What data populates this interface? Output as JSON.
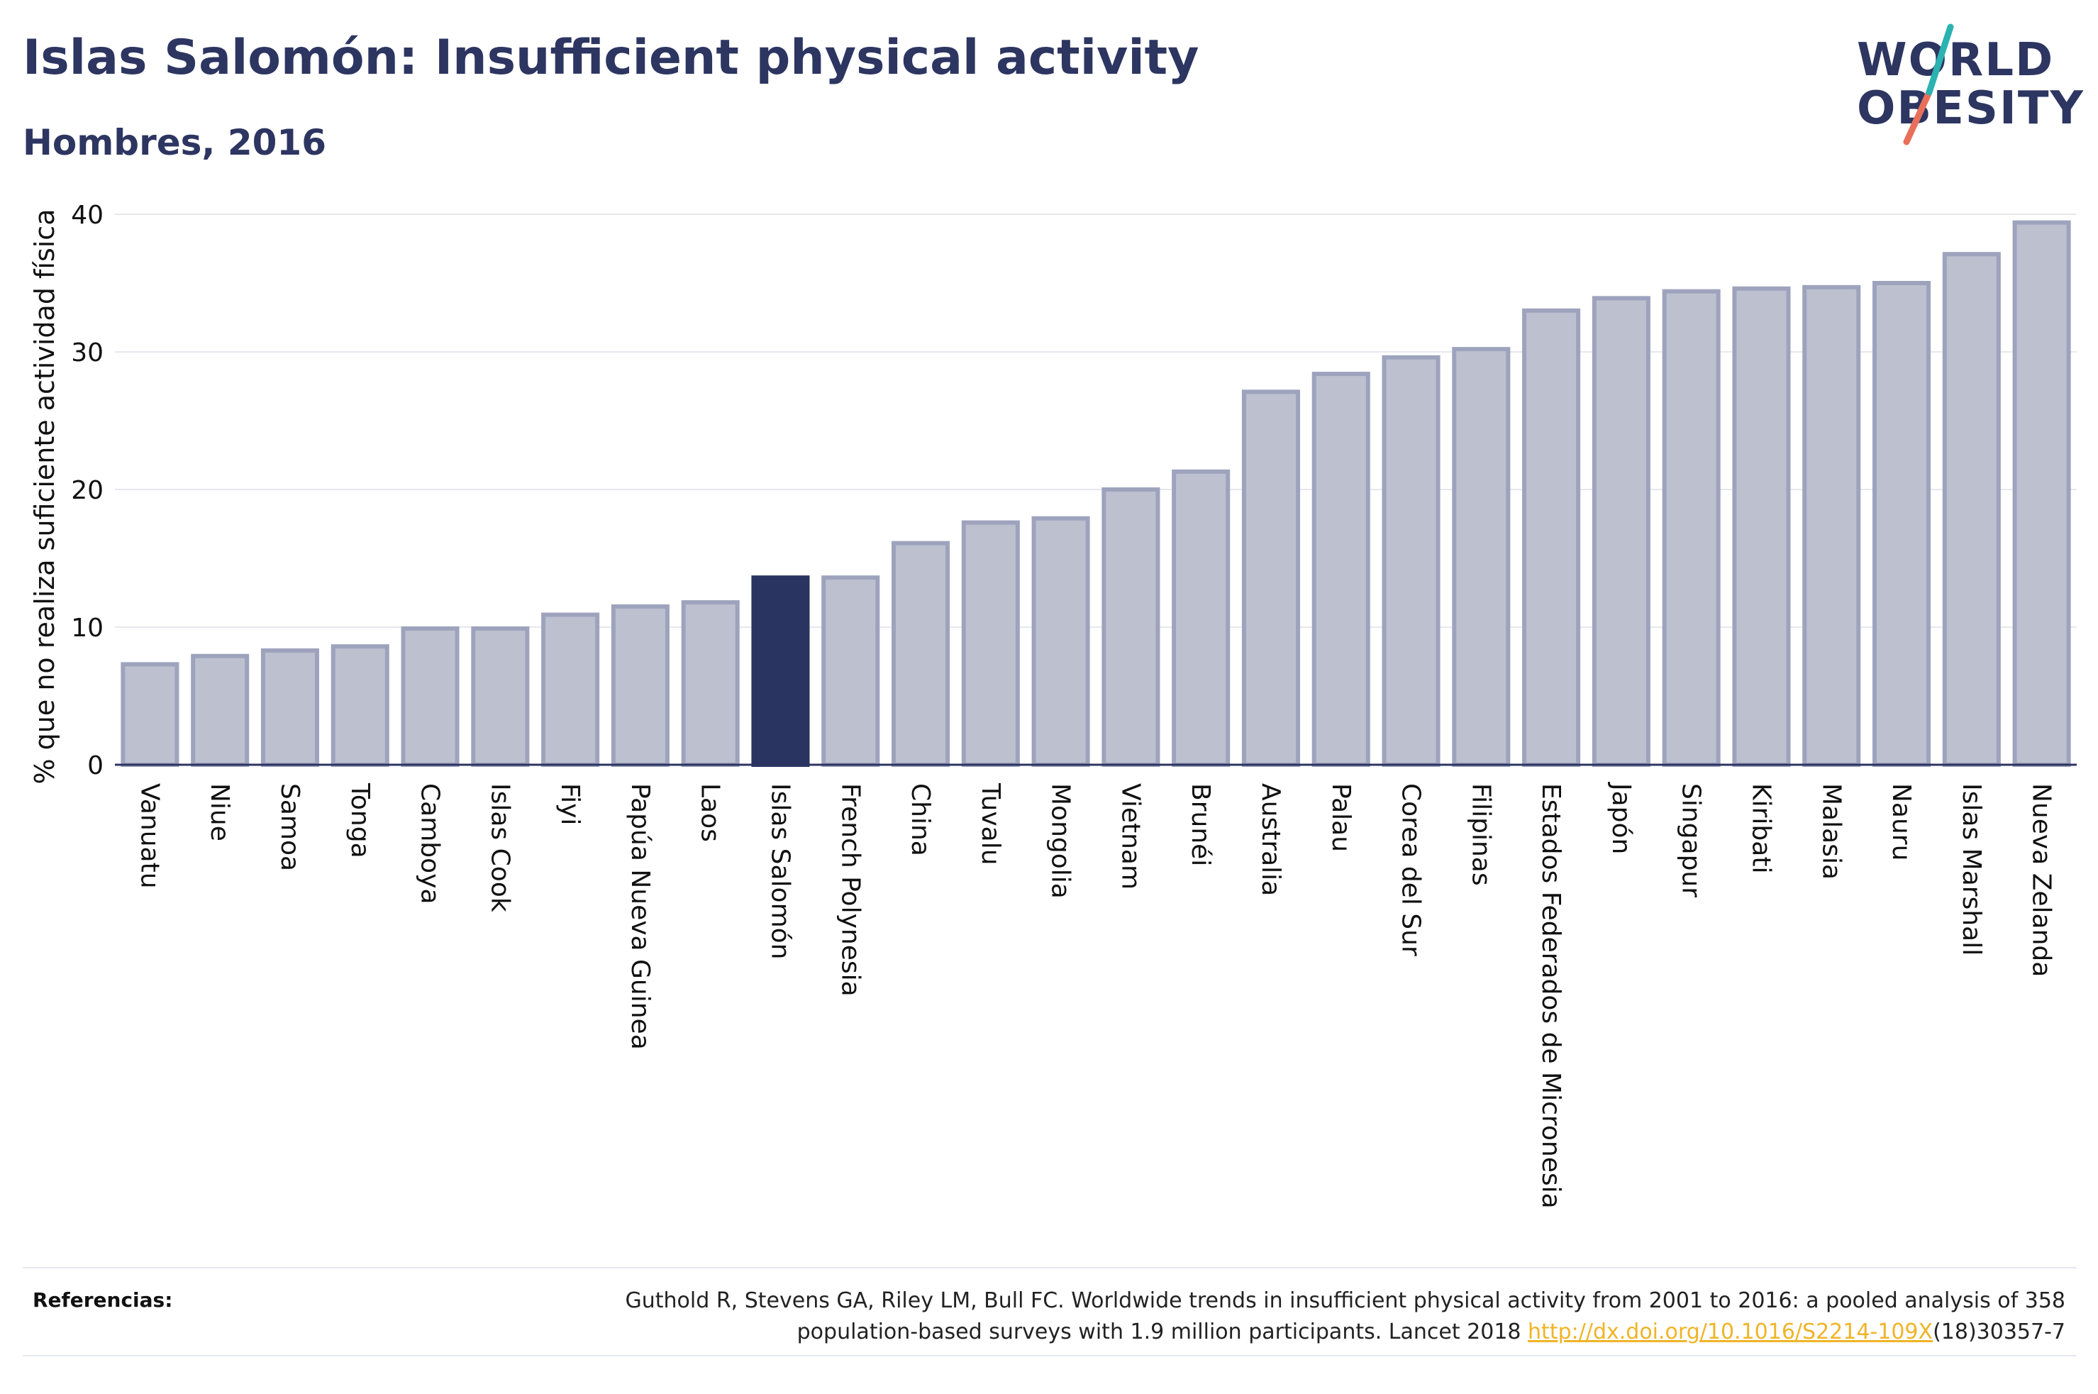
{
  "header": {
    "title": "Islas Salomón: Insufficient physical activity",
    "subtitle": "Hombres, 2016"
  },
  "logo": {
    "line1": "WORLD",
    "line2": "OBESITY"
  },
  "colors": {
    "bar": "#bdc0cf",
    "bar_border": "#9ea3bd",
    "highlight": "#2a3461",
    "grid": "#e6e8ee",
    "text": "#2d3561",
    "link": "#f0b428",
    "logo_teal": "#2ab3b1",
    "logo_coral": "#e8705a"
  },
  "chart_data": {
    "type": "bar",
    "title": "",
    "xlabel": "",
    "ylabel": "% que no realiza suficiente actividad física",
    "ylim": [
      0,
      40
    ],
    "yticks": [
      0,
      10,
      20,
      30,
      40
    ],
    "grid": true,
    "highlight": "Islas Salomón",
    "categories": [
      "Vanuatu",
      "Niue",
      "Samoa",
      "Tonga",
      "Camboya",
      "Islas Cook",
      "Fiyi",
      "Papúa Nueva Guinea",
      "Laos",
      "Islas Salomón",
      "French Polynesia",
      "China",
      "Tuvalu",
      "Mongolia",
      "Vietnam",
      "Brunéi",
      "Australia",
      "Palau",
      "Corea del Sur",
      "Filipinas",
      "Estados Federados de Micronesia",
      "Japón",
      "Singapur",
      "Kiribati",
      "Malasia",
      "Nauru",
      "Islas Marshall",
      "Nueva Zelanda"
    ],
    "values": [
      7.3,
      7.9,
      8.3,
      8.6,
      9.9,
      9.9,
      10.9,
      11.5,
      11.8,
      13.6,
      13.6,
      16.1,
      17.6,
      17.9,
      20.0,
      21.3,
      27.1,
      28.4,
      29.6,
      30.2,
      33.0,
      33.9,
      34.4,
      34.6,
      34.7,
      35.0,
      37.1,
      39.4
    ]
  },
  "references": {
    "label": "Referencias:",
    "text_line1": "Guthold R, Stevens GA, Riley LM, Bull FC. Worldwide trends in insufficient physical activity from 2001 to 2016: a pooled analysis of 358",
    "text_line2_before": "population-based surveys with 1.9 million participants. Lancet 2018 ",
    "link": "http://dx.doi.org/10.1016/S2214-109X",
    "text_line2_after": "(18)30357-7"
  }
}
